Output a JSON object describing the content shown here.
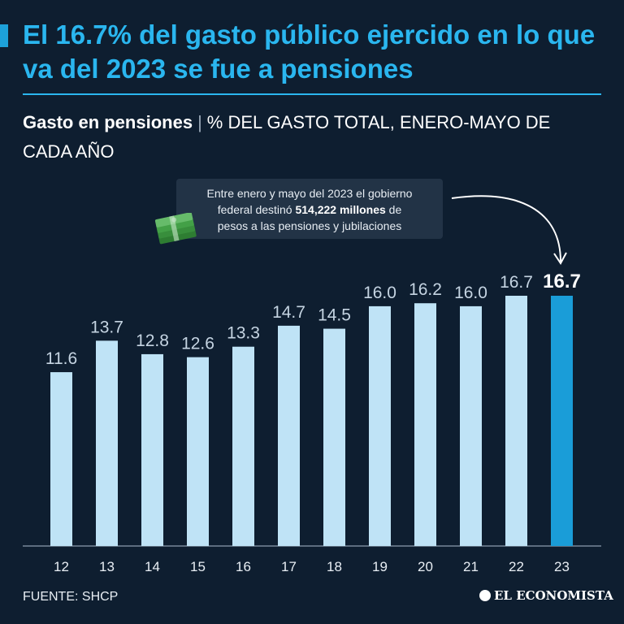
{
  "headline": "El 16.7% del gasto público ejercido en lo que va del 2023 se fue a pensiones",
  "subtitle": {
    "bold": "Gasto en pensiones",
    "separator": "|",
    "rest": "% DEL GASTO TOTAL, ENERO-MAYO DE CADA AÑO"
  },
  "callout": {
    "line1": "Entre enero y mayo del 2023 el gobierno",
    "line2_pre": "federal destinó ",
    "line2_bold": "514,222 millones",
    "line2_post": " de",
    "line3": "pesos a las pensiones y jubilaciones"
  },
  "icons": {
    "money": "money-stack-icon",
    "arrow": "curved-arrow-icon",
    "brand": "el-economista-logo"
  },
  "source": "FUENTE: SHCP",
  "brand": "EL ECONOMISTA",
  "colors": {
    "background": "#0e1e30",
    "bar": "#bfe3f6",
    "highlight_bar": "#1a9dd8",
    "accent": "#2ab6ef"
  },
  "chart_data": {
    "type": "bar",
    "title": "Gasto en pensiones",
    "ylabel": "% del gasto total, enero-mayo de cada año",
    "categories": [
      "12",
      "13",
      "14",
      "15",
      "16",
      "17",
      "18",
      "19",
      "20",
      "21",
      "22",
      "23"
    ],
    "values": [
      11.6,
      13.7,
      12.8,
      12.6,
      13.3,
      14.7,
      14.5,
      16.0,
      16.2,
      16.0,
      16.7,
      16.7
    ],
    "labels": [
      "11.6",
      "13.7",
      "12.8",
      "12.6",
      "13.3",
      "14.7",
      "14.5",
      "16.0",
      "16.2",
      "16.0",
      "16.7",
      "16.7"
    ],
    "highlight_index": 11,
    "ylim": [
      0,
      16.7
    ]
  }
}
